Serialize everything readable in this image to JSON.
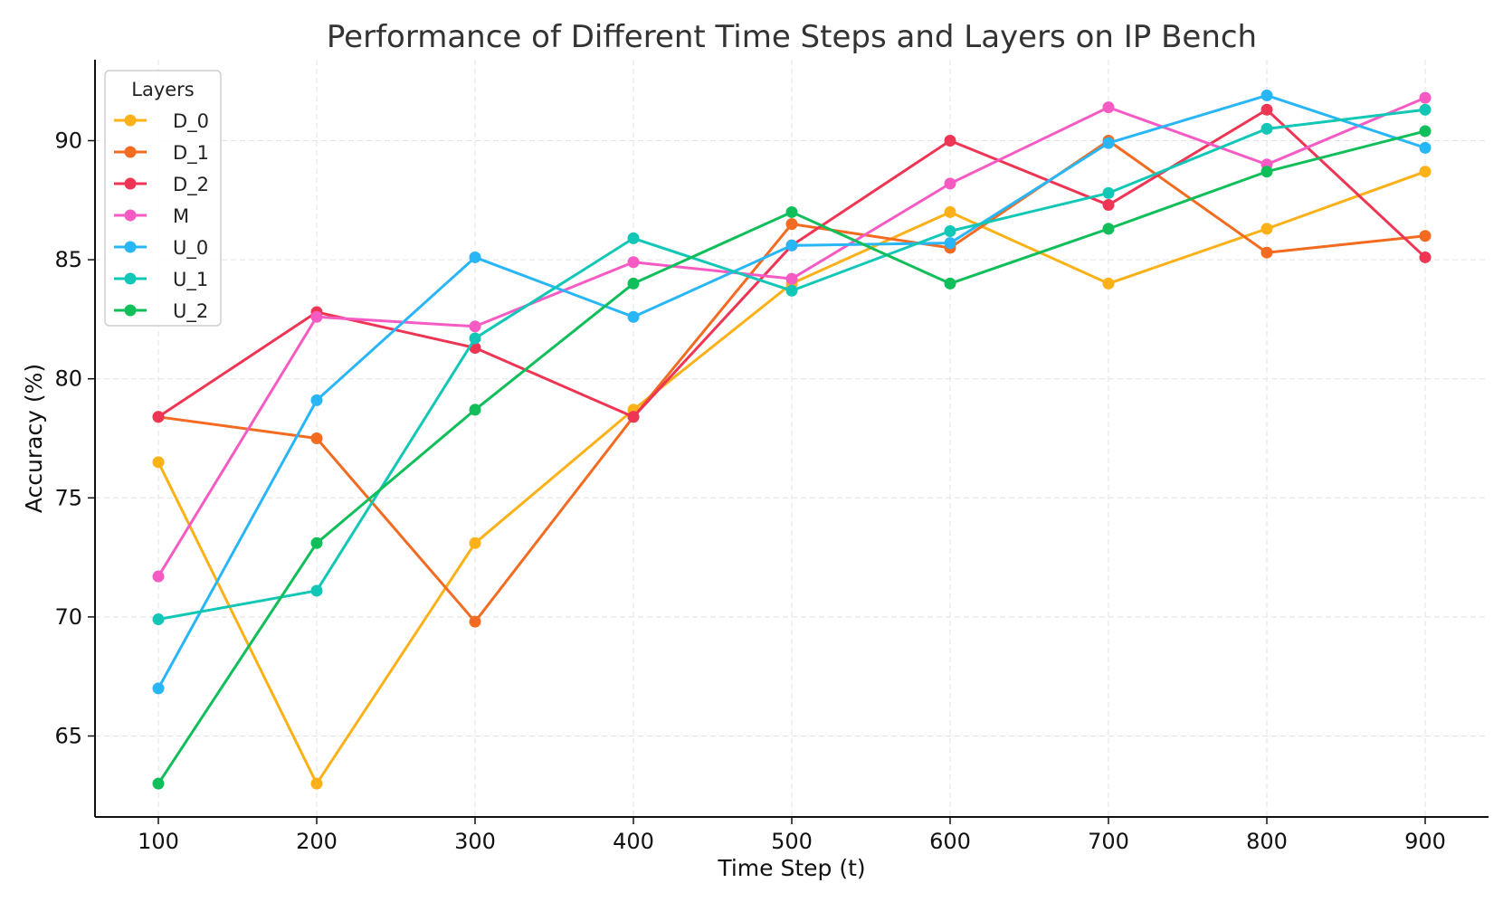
{
  "chart_data": {
    "type": "line",
    "title": "Performance of Different Time Steps and Layers on IP Bench",
    "xlabel": "Time Step (t)",
    "ylabel": "Accuracy (%)",
    "x": [
      100,
      200,
      300,
      400,
      500,
      600,
      700,
      800,
      900
    ],
    "xlim": [
      60,
      940
    ],
    "ylim": [
      61.6,
      93.4
    ],
    "xticks": [
      100,
      200,
      300,
      400,
      500,
      600,
      700,
      800,
      900
    ],
    "yticks": [
      65,
      70,
      75,
      80,
      85,
      90
    ],
    "grid": true,
    "legend_title": "Layers",
    "legend_position": "upper-left",
    "series": [
      {
        "name": "D_0",
        "color": "#FBB117",
        "values": [
          76.5,
          63.0,
          73.1,
          78.7,
          84.0,
          87.0,
          84.0,
          86.3,
          88.7
        ]
      },
      {
        "name": "D_1",
        "color": "#F26B21",
        "values": [
          78.4,
          77.5,
          69.8,
          78.4,
          86.5,
          85.5,
          90.0,
          85.3,
          86.0
        ]
      },
      {
        "name": "D_2",
        "color": "#EF3554",
        "values": [
          78.4,
          82.8,
          81.3,
          78.4,
          85.6,
          90.0,
          87.3,
          91.3,
          85.1
        ]
      },
      {
        "name": "M",
        "color": "#F65BC4",
        "values": [
          71.7,
          82.6,
          82.2,
          84.9,
          84.2,
          88.2,
          91.4,
          89.0,
          91.8
        ]
      },
      {
        "name": "U_0",
        "color": "#29B6F6",
        "values": [
          67.0,
          79.1,
          85.1,
          82.6,
          85.6,
          85.7,
          89.9,
          91.9,
          89.7
        ]
      },
      {
        "name": "U_1",
        "color": "#12C7B5",
        "values": [
          69.9,
          71.1,
          81.7,
          85.9,
          83.7,
          86.2,
          87.8,
          90.5,
          91.3
        ]
      },
      {
        "name": "U_2",
        "color": "#10BE5A",
        "values": [
          63.0,
          73.1,
          78.7,
          84.0,
          87.0,
          84.0,
          86.3,
          88.7,
          90.4
        ]
      }
    ]
  }
}
